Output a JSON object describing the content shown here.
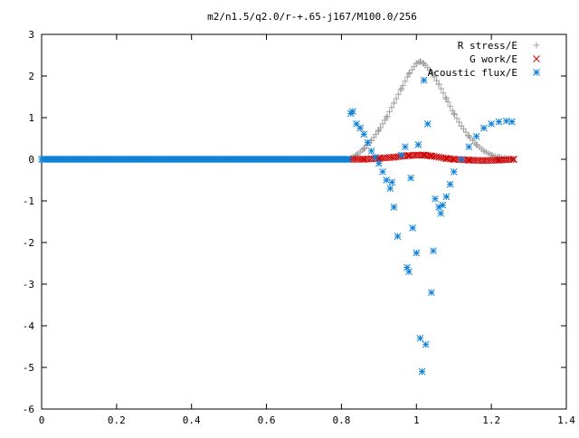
{
  "chart_data": {
    "type": "scatter",
    "title": "m2/n1.5/q2.0/r-+.65-j167/M100.0/256",
    "xlabel": "",
    "ylabel": "",
    "xlim": [
      0,
      1.4
    ],
    "ylim": [
      -6,
      3
    ],
    "x_ticks": [
      "0",
      "0.2",
      "0.4",
      "0.6",
      "0.8",
      "1",
      "1.2",
      "1.4"
    ],
    "y_ticks": [
      "3",
      "2",
      "1",
      "0",
      "-1",
      "-2",
      "-3",
      "-4",
      "-5",
      "-6"
    ],
    "grid": false,
    "legend_position": "top-right",
    "series": [
      {
        "name": "R stress/E",
        "marker": "+",
        "color": "#a0a0a0",
        "x": [
          0.82,
          0.84,
          0.86,
          0.88,
          0.9,
          0.92,
          0.94,
          0.96,
          0.98,
          1.0,
          1.01,
          1.02,
          1.04,
          1.06,
          1.08,
          1.1,
          1.12,
          1.14,
          1.16,
          1.18,
          1.2,
          1.22,
          1.24,
          1.26
        ],
        "y": [
          0.0,
          0.1,
          0.25,
          0.45,
          0.7,
          1.0,
          1.35,
          1.7,
          2.05,
          2.3,
          2.35,
          2.3,
          2.1,
          1.8,
          1.45,
          1.1,
          0.8,
          0.55,
          0.35,
          0.2,
          0.1,
          0.05,
          0.02,
          0.0
        ]
      },
      {
        "name": "G work/E",
        "marker": "x",
        "color": "#cc0000",
        "x": [
          0.82,
          0.86,
          0.9,
          0.94,
          0.98,
          1.0,
          1.02,
          1.04,
          1.06,
          1.08,
          1.1,
          1.14,
          1.18,
          1.22,
          1.26
        ],
        "y": [
          0.0,
          0.0,
          0.02,
          0.05,
          0.09,
          0.1,
          0.1,
          0.08,
          0.05,
          0.02,
          0.0,
          -0.02,
          -0.03,
          -0.02,
          0.0
        ]
      },
      {
        "name": "Acoustic flux/E",
        "marker": "*",
        "color": "#0b7fd8",
        "x": [
          0.825,
          0.83,
          0.84,
          0.85,
          0.86,
          0.87,
          0.88,
          0.89,
          0.9,
          0.91,
          0.92,
          0.93,
          0.935,
          0.94,
          0.95,
          0.96,
          0.97,
          0.975,
          0.98,
          0.985,
          0.99,
          1.0,
          1.005,
          1.01,
          1.015,
          1.02,
          1.025,
          1.03,
          1.04,
          1.045,
          1.05,
          1.06,
          1.065,
          1.07,
          1.08,
          1.09,
          1.1,
          1.12,
          1.14,
          1.16,
          1.18,
          1.2,
          1.22,
          1.24,
          1.255
        ],
        "y": [
          1.1,
          1.15,
          0.85,
          0.75,
          0.6,
          0.4,
          0.2,
          0.05,
          -0.1,
          -0.3,
          -0.5,
          -0.7,
          -0.55,
          -1.15,
          -1.85,
          0.1,
          0.3,
          -2.6,
          -2.7,
          -0.45,
          -1.65,
          -2.25,
          0.35,
          -4.3,
          -5.1,
          1.9,
          -4.45,
          0.85,
          -3.2,
          -2.2,
          -0.95,
          -1.15,
          -1.3,
          -1.1,
          -0.9,
          -0.6,
          -0.3,
          0.0,
          0.3,
          0.55,
          0.75,
          0.85,
          0.9,
          0.92,
          0.9
        ]
      },
      {
        "name": "",
        "marker": "line",
        "color": "#2aa02a",
        "x": [
          0,
          0.82
        ],
        "y": [
          0,
          0
        ]
      }
    ]
  }
}
